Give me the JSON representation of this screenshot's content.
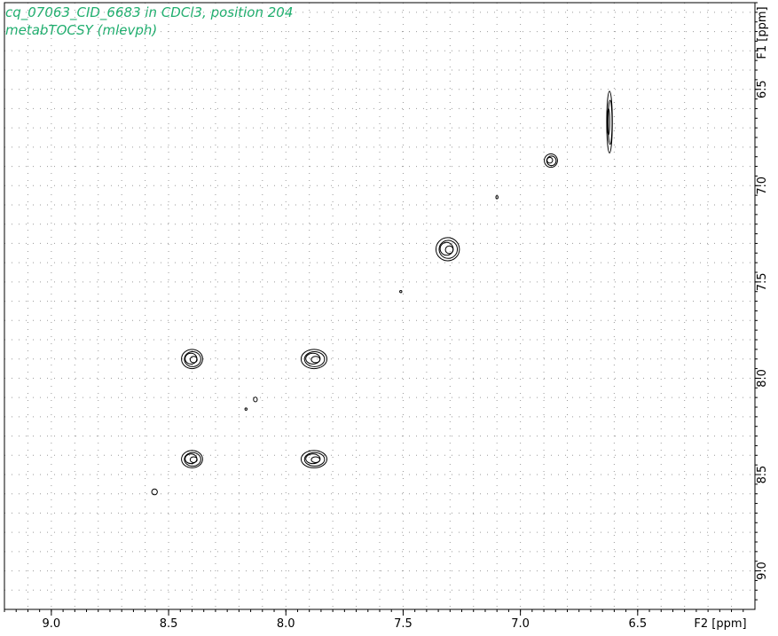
{
  "chart_data": {
    "type": "contour",
    "title": "cq_07063_CID_6683 in CDCl3, position 204",
    "subtitle": "metabTOCSY (mlevph)",
    "xlabel": "F2 [ppm]",
    "ylabel": "F1 [ppm]",
    "xlim": [
      9.2,
      6.0
    ],
    "ylim": [
      6.05,
      9.2
    ],
    "x_ticks": [
      "9.0",
      "8.5",
      "8.0",
      "7.5",
      "7.0",
      "6.5"
    ],
    "y_ticks": [
      "6.5",
      "7.0",
      "7.5",
      "8.0",
      "8.5",
      "9.0"
    ],
    "x_tick_values": [
      9.0,
      8.5,
      8.0,
      7.5,
      7.0,
      6.5
    ],
    "y_tick_values": [
      6.5,
      7.0,
      7.5,
      8.0,
      8.5,
      9.0
    ],
    "grid": "dotted",
    "peaks": [
      {
        "x": 6.62,
        "y": 6.67,
        "rx": 0.012,
        "ry": 0.16,
        "levels": 3
      },
      {
        "x": 6.87,
        "y": 6.87,
        "rx": 0.028,
        "ry": 0.035,
        "levels": 3
      },
      {
        "x": 7.1,
        "y": 7.06,
        "rx": 0.004,
        "ry": 0.008,
        "levels": 1
      },
      {
        "x": 7.31,
        "y": 7.33,
        "rx": 0.05,
        "ry": 0.06,
        "levels": 4
      },
      {
        "x": 7.51,
        "y": 7.55,
        "rx": 0.003,
        "ry": 0.005,
        "levels": 1
      },
      {
        "x": 7.88,
        "y": 7.9,
        "rx": 0.055,
        "ry": 0.05,
        "levels": 4
      },
      {
        "x": 8.4,
        "y": 7.9,
        "rx": 0.045,
        "ry": 0.05,
        "levels": 4
      },
      {
        "x": 8.13,
        "y": 8.11,
        "rx": 0.008,
        "ry": 0.012,
        "levels": 1
      },
      {
        "x": 8.17,
        "y": 8.16,
        "rx": 0.004,
        "ry": 0.006,
        "levels": 1
      },
      {
        "x": 7.88,
        "y": 8.42,
        "rx": 0.055,
        "ry": 0.045,
        "levels": 4
      },
      {
        "x": 8.4,
        "y": 8.42,
        "rx": 0.045,
        "ry": 0.045,
        "levels": 4
      },
      {
        "x": 8.56,
        "y": 8.59,
        "rx": 0.012,
        "ry": 0.015,
        "levels": 1
      }
    ]
  }
}
